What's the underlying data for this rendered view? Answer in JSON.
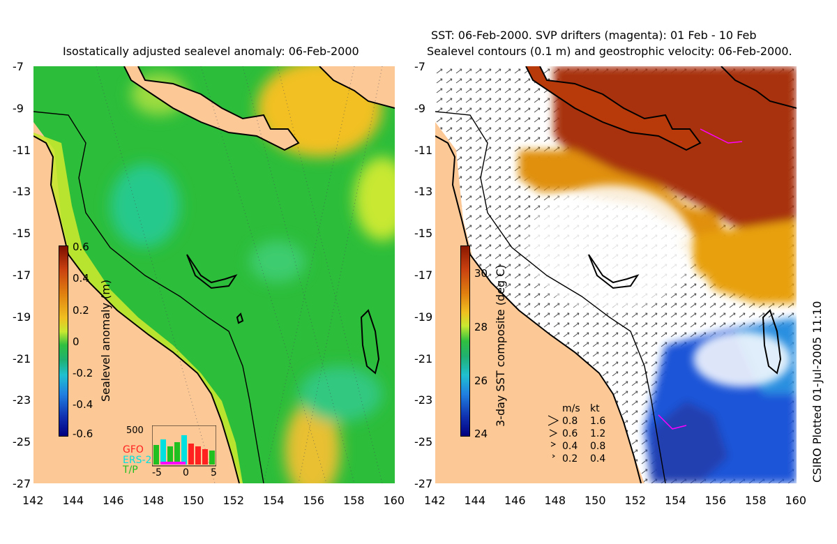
{
  "left_panel": {
    "title": "Isostatically adjusted sealevel anomaly: 06-Feb-2000",
    "y_ticks": [
      "-7",
      "-9",
      "-11",
      "-13",
      "-15",
      "-17",
      "-19",
      "-21",
      "-23",
      "-25",
      "-27"
    ],
    "x_ticks": [
      "142",
      "144",
      "146",
      "148",
      "150",
      "152",
      "154",
      "156",
      "158",
      "160"
    ],
    "colorbar": {
      "label": "Sealevel anomaly (m)",
      "ticks": [
        "0.6",
        "0.4",
        "0.2",
        "0",
        "-0.2",
        "-0.4",
        "-0.6"
      ]
    },
    "histogram": {
      "y_label": "500",
      "legend": [
        "GFO",
        "ERS-2",
        "T/P"
      ],
      "legend_colors": [
        "#ff2020",
        "#00e0e0",
        "#20c020"
      ],
      "x_ticks": [
        "-5",
        "0",
        "5"
      ]
    }
  },
  "right_panel": {
    "title_line1": "SST: 06-Feb-2000. SVP drifters (magenta): 01 Feb - 10 Feb",
    "title_line2": "Sealevel contours (0.1 m) and geostrophic velocity: 06-Feb-2000.",
    "y_ticks": [
      "-7",
      "-9",
      "-11",
      "-13",
      "-15",
      "-17",
      "-19",
      "-21",
      "-23",
      "-25",
      "-27"
    ],
    "x_ticks": [
      "142",
      "144",
      "146",
      "148",
      "150",
      "152",
      "154",
      "156",
      "158",
      "160"
    ],
    "colorbar": {
      "label": "3-day SST composite (deg C)",
      "ticks": [
        "30",
        "28",
        "26",
        "24"
      ]
    },
    "velocity_legend": {
      "header": [
        "m/s",
        "kt"
      ],
      "rows": [
        [
          "0.8",
          "1.6"
        ],
        [
          "0.6",
          "1.2"
        ],
        [
          "0.4",
          "0.8"
        ],
        [
          "0.2",
          "0.4"
        ]
      ]
    }
  },
  "credit": "CSIRO Plotted 01-Jul-2005 11:10",
  "colors": {
    "land": "#fcc896",
    "ocean_green": "#2cbd3a",
    "ocean_teal": "#26c98c",
    "shelf_yellow": "#c8e830",
    "warm_orange": "#e8a010",
    "hot_red": "#a02c08",
    "cool_blue": "#1f55d8"
  }
}
